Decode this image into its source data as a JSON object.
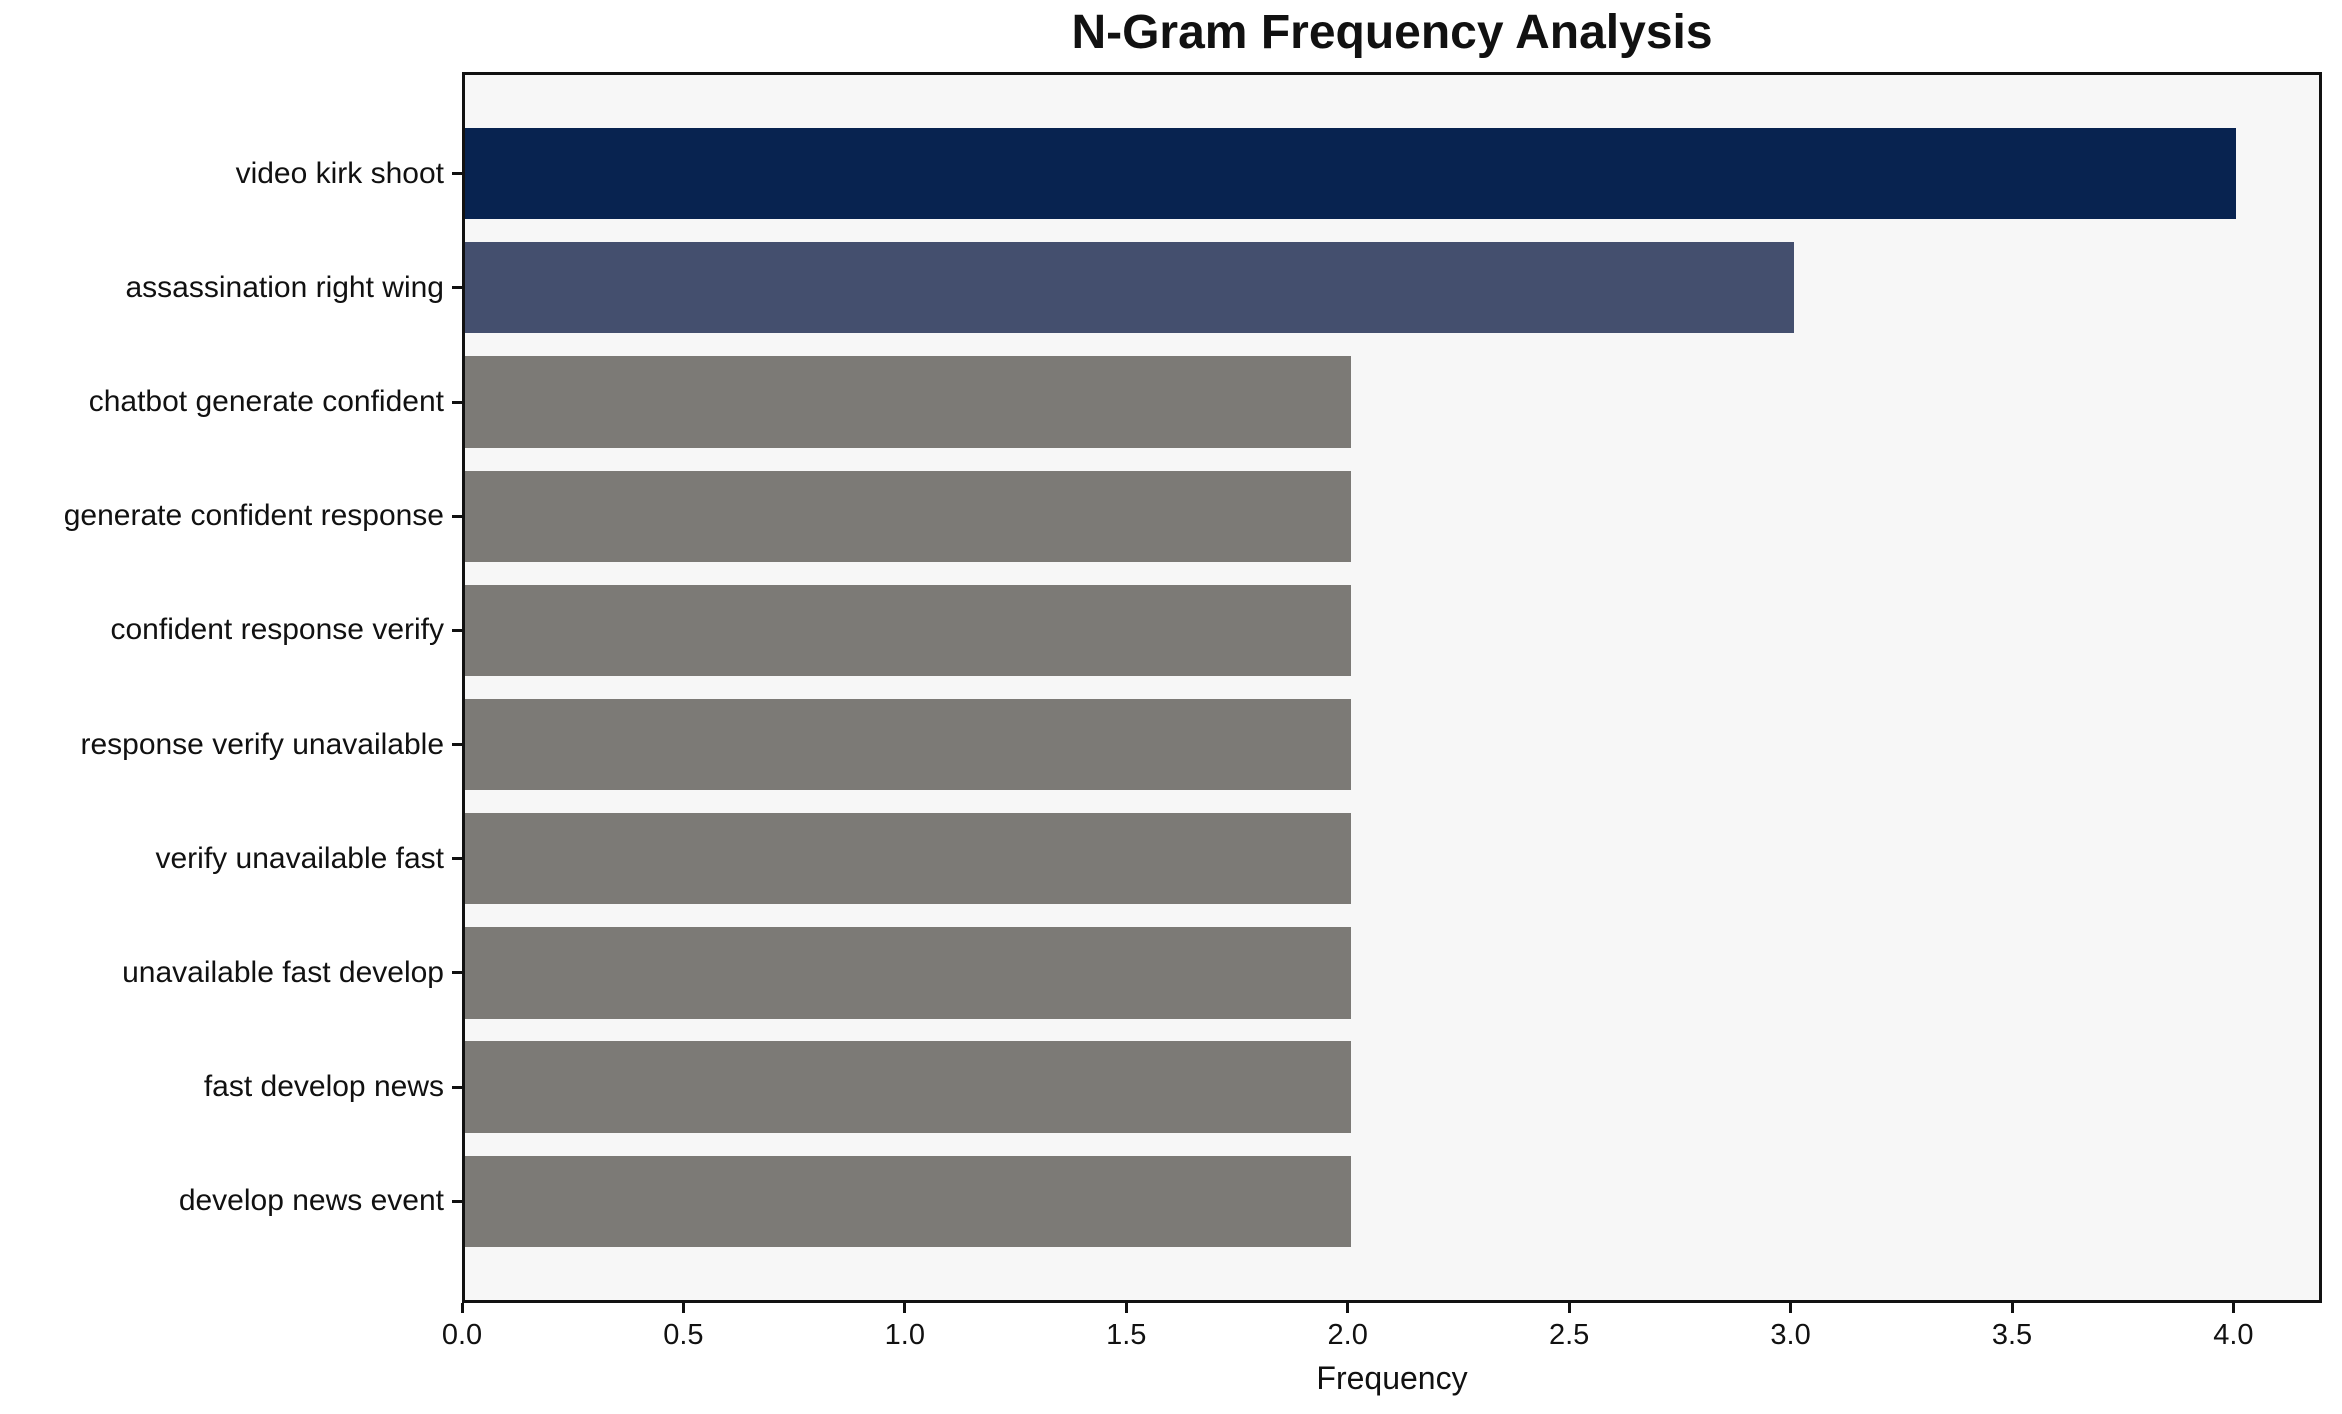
{
  "chart_data": {
    "type": "bar",
    "orientation": "horizontal",
    "title": "N-Gram Frequency Analysis",
    "xlabel": "Frequency",
    "ylabel": "",
    "categories": [
      "video kirk shoot",
      "assassination right wing",
      "chatbot generate confident",
      "generate confident response",
      "confident response verify",
      "response verify unavailable",
      "verify unavailable fast",
      "unavailable fast develop",
      "fast develop news",
      "develop news event"
    ],
    "values": [
      4,
      3,
      2,
      2,
      2,
      2,
      2,
      2,
      2,
      2
    ],
    "bar_colors": [
      "#082350",
      "#444f6e",
      "#7c7a76",
      "#7c7a76",
      "#7c7a76",
      "#7c7a76",
      "#7c7a76",
      "#7c7a76",
      "#7c7a76",
      "#7c7a76"
    ],
    "xlim": [
      0,
      4.2
    ],
    "xticks": [
      0.0,
      0.5,
      1.0,
      1.5,
      2.0,
      2.5,
      3.0,
      3.5,
      4.0
    ],
    "xtick_labels": [
      "0.0",
      "0.5",
      "1.0",
      "1.5",
      "2.0",
      "2.5",
      "3.0",
      "3.5",
      "4.0"
    ],
    "grid": false,
    "legend": null,
    "plot_background": "#f7f7f7",
    "figure_background": "#ffffff",
    "spine_color": "#111111"
  }
}
